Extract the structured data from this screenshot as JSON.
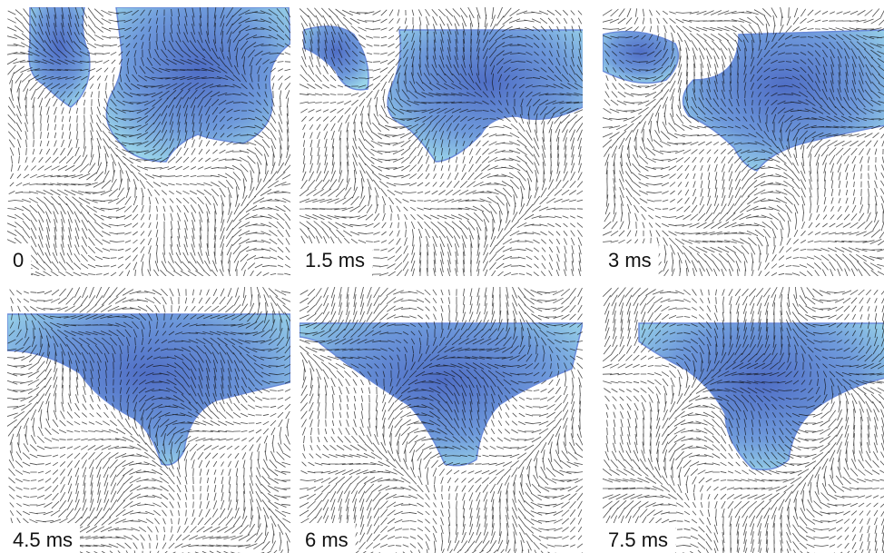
{
  "panels": [
    {
      "label": "0"
    },
    {
      "label": "1.5 ms"
    },
    {
      "label": "3 ms"
    },
    {
      "label": "4.5 ms"
    },
    {
      "label": "6 ms"
    },
    {
      "label": "7.5 ms"
    }
  ]
}
